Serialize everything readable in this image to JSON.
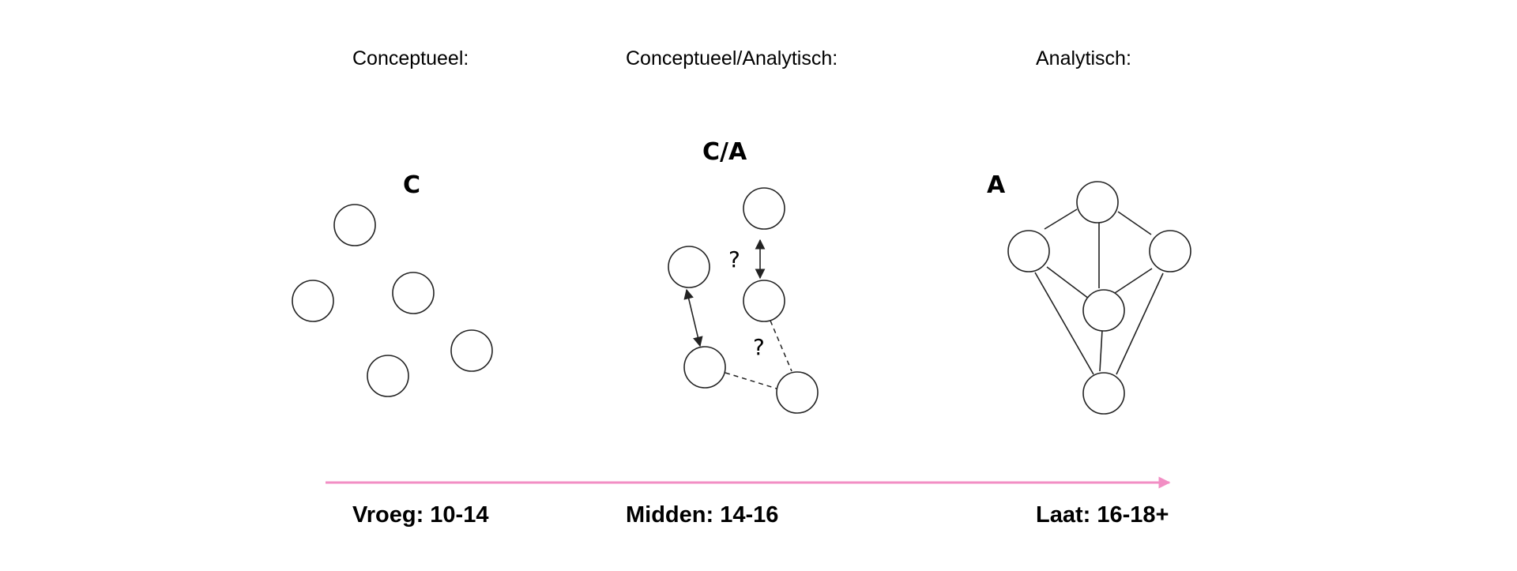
{
  "columns": [
    {
      "heading": "Conceptueel:",
      "marker": "C",
      "stage": "Vroeg: 10-14"
    },
    {
      "heading": "Conceptueel/Analytisch:",
      "marker": "C/A",
      "stage": "Midden: 14-16",
      "question_marks": [
        "?",
        "?"
      ]
    },
    {
      "heading": "Analytisch:",
      "marker": "A",
      "stage": "Laat: 16-18+"
    }
  ],
  "colors": {
    "timeline": "#f28ec4",
    "stroke": "#222222",
    "text": "#000000",
    "background": "#ffffff"
  }
}
